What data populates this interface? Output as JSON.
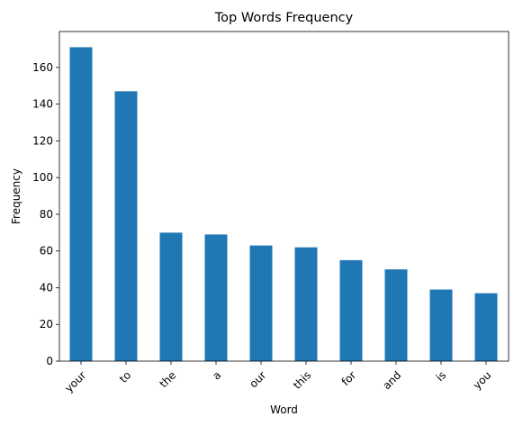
{
  "chart_data": {
    "type": "bar",
    "title": "Top Words Frequency",
    "xlabel": "Word",
    "ylabel": "Frequency",
    "categories": [
      "your",
      "to",
      "the",
      "a",
      "our",
      "this",
      "for",
      "and",
      "is",
      "you"
    ],
    "values": [
      171,
      147,
      70,
      69,
      63,
      62,
      55,
      50,
      39,
      37
    ],
    "ylim": [
      0,
      179.55
    ],
    "yticks": [
      0,
      20,
      40,
      60,
      80,
      100,
      120,
      140,
      160
    ],
    "grid": false,
    "legend": "none",
    "bar_color": "#1f77b4",
    "xtick_rotation": 45
  }
}
